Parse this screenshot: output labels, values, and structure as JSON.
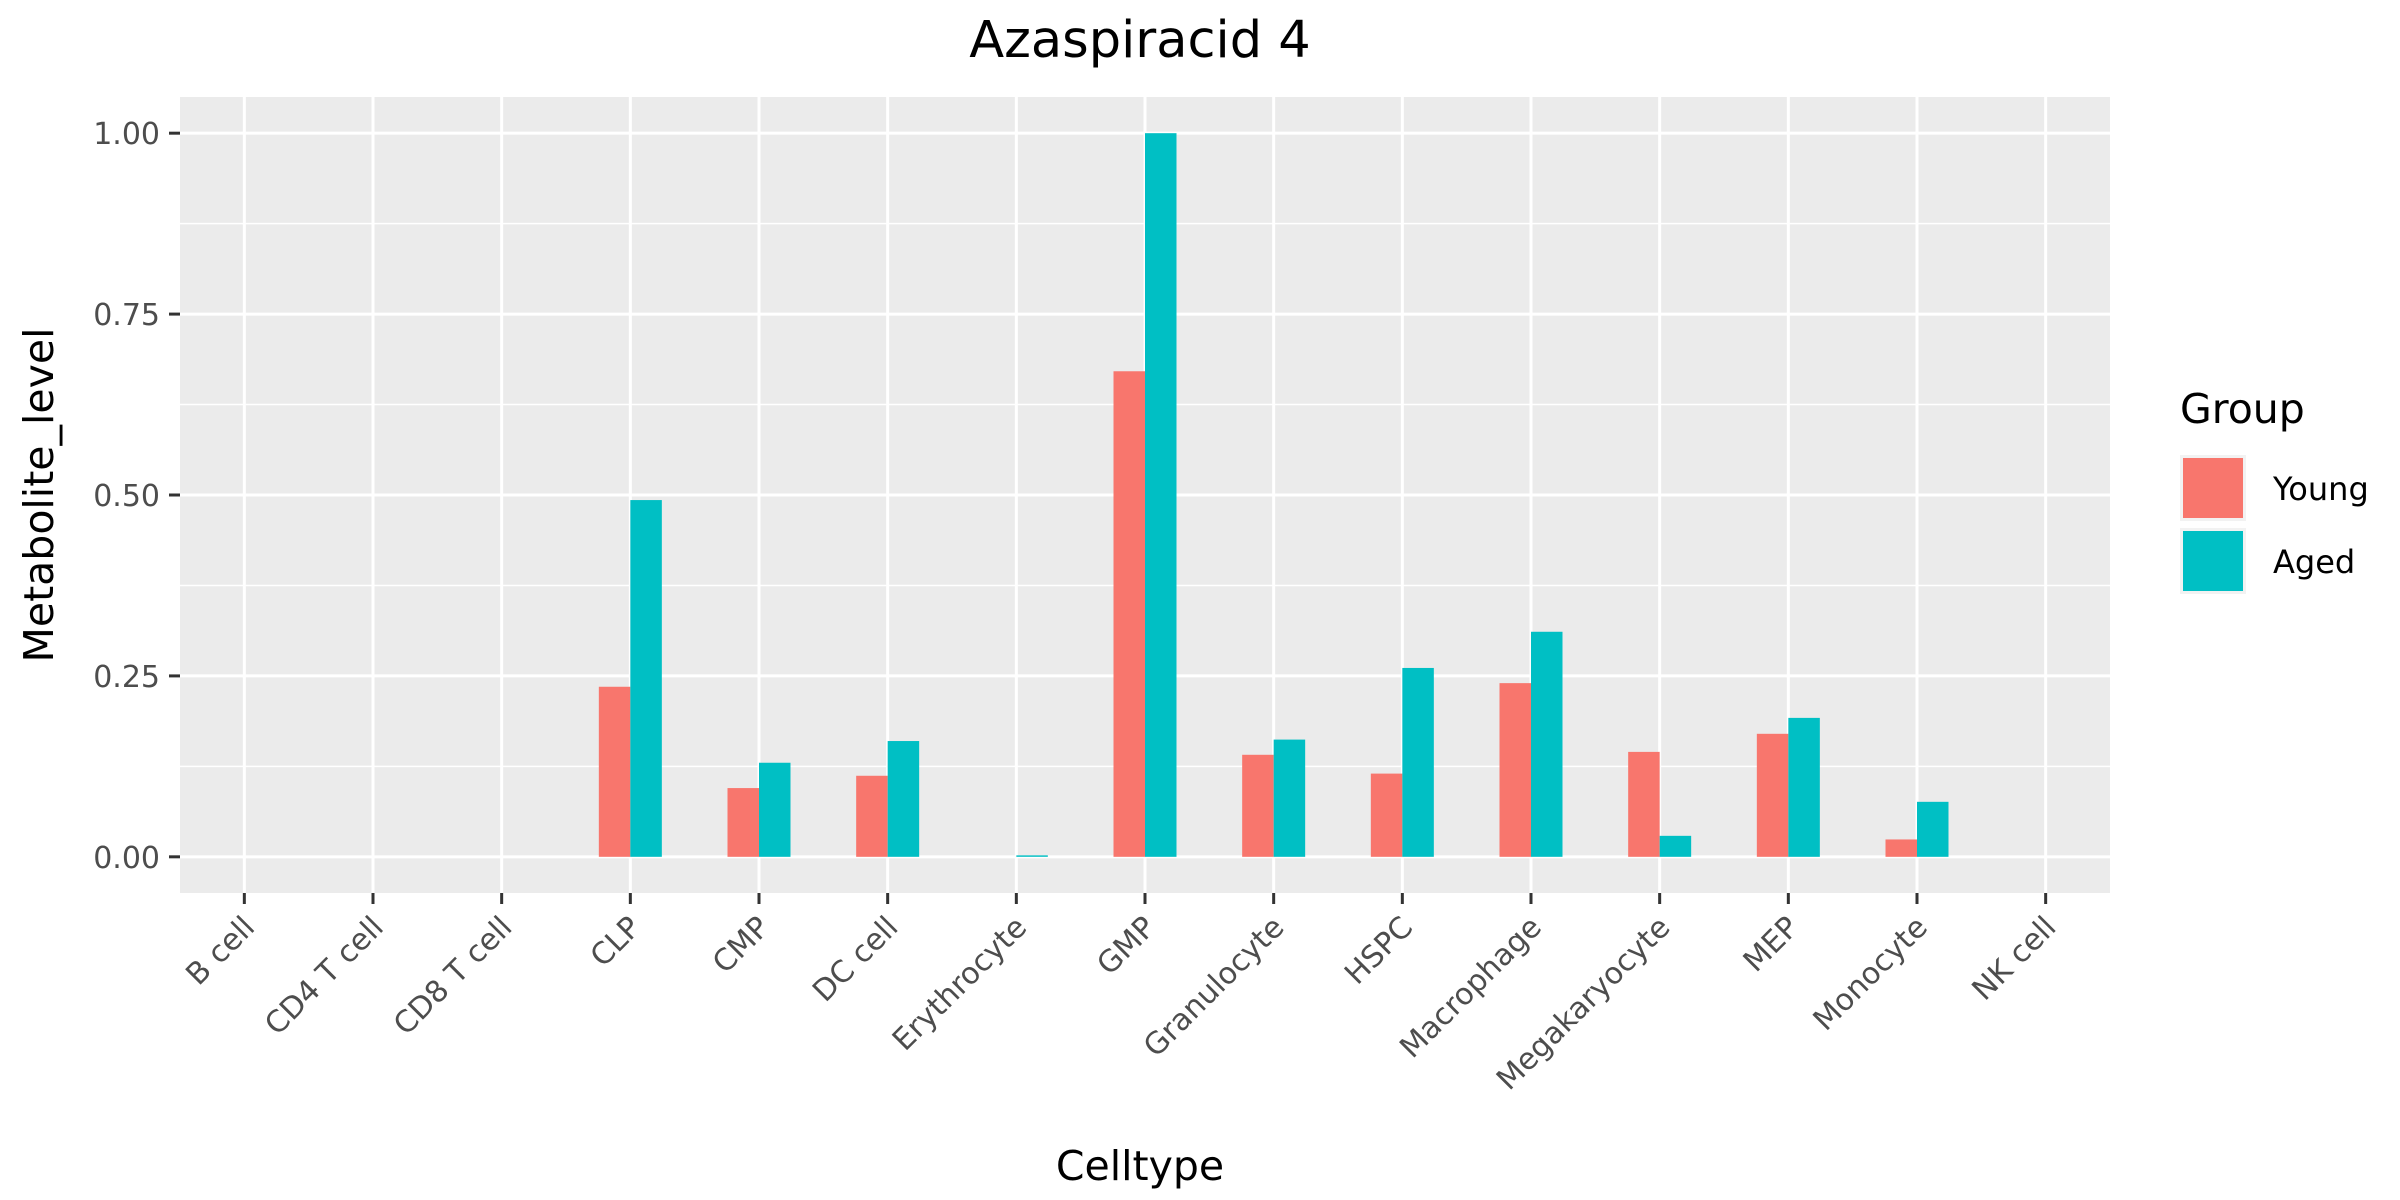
{
  "chart_data": {
    "type": "bar",
    "title": "Azaspiracid 4",
    "xlabel": "Celltype",
    "ylabel": "Metabolite_level",
    "categories": [
      "B cell",
      "CD4 T cell",
      "CD8 T cell",
      "CLP",
      "CMP",
      "DC cell",
      "Erythrocyte",
      "GMP",
      "Granulocyte",
      "HSPC",
      "Macrophage",
      "Megakaryocyte",
      "MEP",
      "Monocyte",
      "NK cell"
    ],
    "series": [
      {
        "name": "Young",
        "color": "#F8766D",
        "values": [
          0,
          0,
          0,
          0.235,
          0.095,
          0.112,
          0,
          0.671,
          0.141,
          0.115,
          0.24,
          0.145,
          0.17,
          0.024,
          0
        ]
      },
      {
        "name": "Aged",
        "color": "#00BFC4",
        "values": [
          0,
          0,
          0,
          0.493,
          0.13,
          0.16,
          0.002,
          1.0,
          0.162,
          0.261,
          0.311,
          0.029,
          0.192,
          0.076,
          0
        ]
      }
    ],
    "ylim": [
      -0.05,
      1.05
    ],
    "yticks": [
      0,
      0.25,
      0.5,
      0.75,
      1.0
    ],
    "ytick_labels": [
      "0.00",
      "0.25",
      "0.50",
      "0.75",
      "1.00"
    ],
    "grid": true,
    "legend": {
      "title": "Group",
      "position": "right"
    },
    "panel_background": "#EBEBEB",
    "grid_color": "#FFFFFF"
  }
}
